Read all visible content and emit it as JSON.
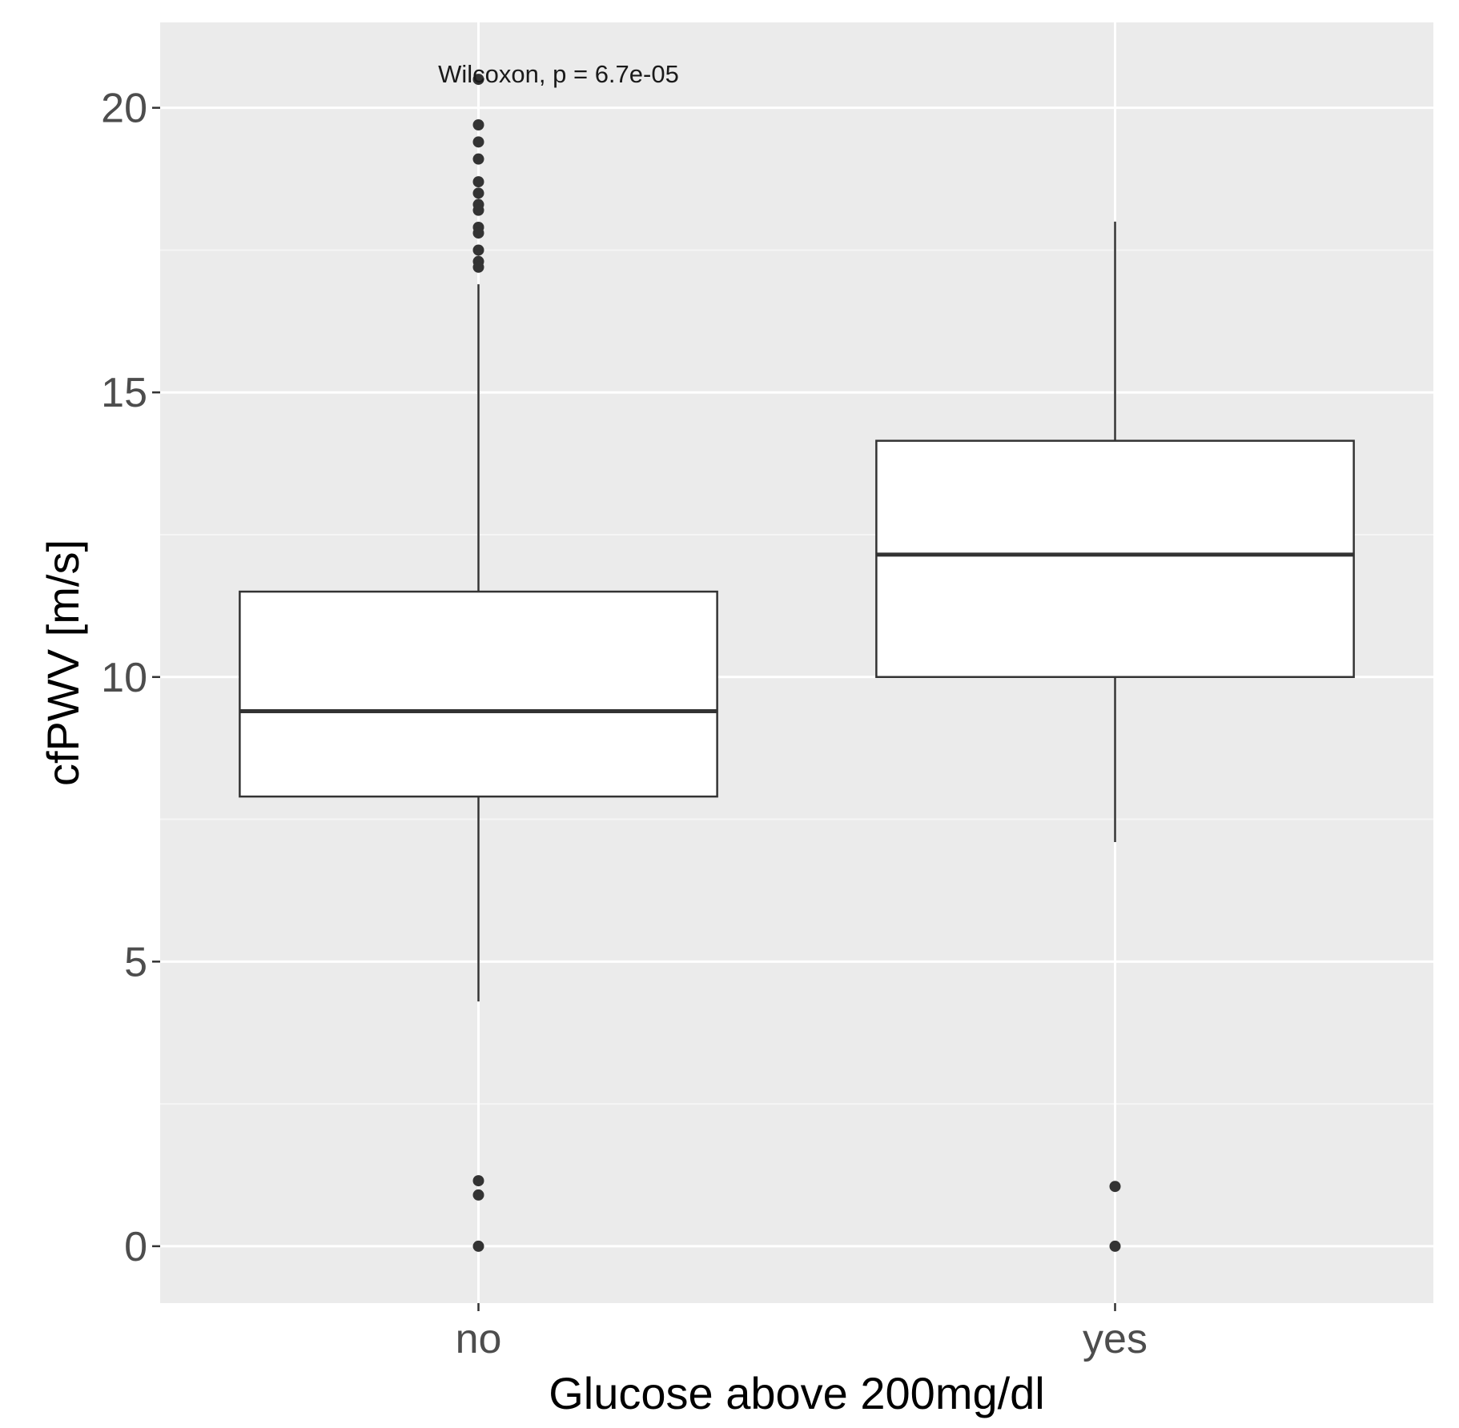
{
  "chart_data": {
    "type": "boxplot",
    "title": "",
    "xlabel": "Glucose above 200mg/dl",
    "ylabel": "cfPWV [m/s]",
    "ylim": [
      -1,
      21.5
    ],
    "yticks": [
      0,
      5,
      10,
      15,
      20
    ],
    "grid": true,
    "annotation": "Wilcoxon, p = 6.7e-05",
    "categories": [
      "no",
      "yes"
    ],
    "boxes": [
      {
        "category": "no",
        "whisker_low": 4.3,
        "q1": 7.9,
        "median": 9.4,
        "q3": 11.5,
        "whisker_high": 16.9,
        "outliers": [
          20.5,
          19.7,
          19.4,
          19.1,
          18.7,
          18.5,
          18.3,
          18.2,
          17.9,
          17.8,
          17.5,
          17.3,
          17.2,
          1.15,
          0.9,
          0.0
        ]
      },
      {
        "category": "yes",
        "whisker_low": 7.1,
        "q1": 10.0,
        "median": 12.15,
        "q3": 14.15,
        "whisker_high": 18.0,
        "outliers": [
          1.05,
          0.0
        ]
      }
    ]
  },
  "colors": {
    "panel_background": "#ebebeb",
    "grid_major": "#ffffff",
    "grid_minor": "#f5f5f5",
    "box_fill": "#ffffff",
    "box_stroke": "#333333",
    "point": "#333333",
    "tick_text": "#4d4d4d",
    "axis_text": "#000000"
  }
}
